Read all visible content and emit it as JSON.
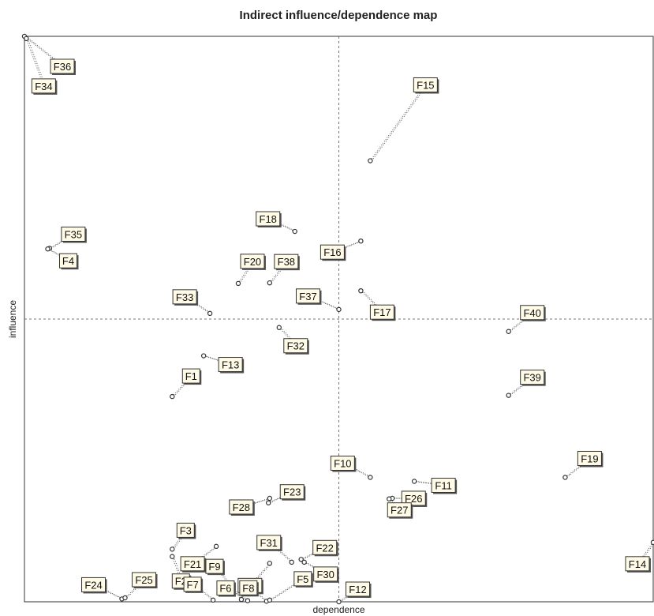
{
  "chart_data": {
    "type": "scatter",
    "title": "Indirect influence/dependence map",
    "xlabel": "dependence",
    "ylabel": "influence",
    "xlim": [
      0,
      100
    ],
    "ylim": [
      0,
      100
    ],
    "grid": false,
    "quadrant_lines": {
      "x": 50,
      "y": 50,
      "style": "dashed"
    },
    "colors": {
      "label_fill": "#fffbe6",
      "label_border": "#333333",
      "leader": "#555555",
      "marker": "#333333"
    },
    "points": [
      {
        "label": "F36",
        "x": 0.0,
        "y": 100.0,
        "ldx": 48,
        "ldy": 38
      },
      {
        "label": "F34",
        "x": 0.3,
        "y": 99.6,
        "ldx": 22,
        "ldy": 60
      },
      {
        "label": "F15",
        "x": 55.0,
        "y": 78.0,
        "ldx": 70,
        "ldy": -96
      },
      {
        "label": "F18",
        "x": 43.0,
        "y": 65.5,
        "ldx": -34,
        "ldy": -16
      },
      {
        "label": "F35",
        "x": 4.0,
        "y": 62.5,
        "ldx": 30,
        "ldy": -18
      },
      {
        "label": "F4",
        "x": 3.7,
        "y": 62.4,
        "ldx": 26,
        "ldy": 15
      },
      {
        "label": "F16",
        "x": 53.5,
        "y": 63.8,
        "ldx": -36,
        "ldy": 14
      },
      {
        "label": "F20",
        "x": 34.0,
        "y": 56.3,
        "ldx": 18,
        "ldy": -28
      },
      {
        "label": "F38",
        "x": 39.0,
        "y": 56.4,
        "ldx": 21,
        "ldy": -27
      },
      {
        "label": "F37",
        "x": 50.0,
        "y": 51.7,
        "ldx": -39,
        "ldy": -17
      },
      {
        "label": "F17",
        "x": 53.5,
        "y": 55.0,
        "ldx": 27,
        "ldy": 27
      },
      {
        "label": "F33",
        "x": 29.5,
        "y": 51.0,
        "ldx": -32,
        "ldy": -21
      },
      {
        "label": "F32",
        "x": 40.5,
        "y": 48.5,
        "ldx": 21,
        "ldy": 23
      },
      {
        "label": "F40",
        "x": 77.0,
        "y": 47.8,
        "ldx": 30,
        "ldy": -24
      },
      {
        "label": "F13",
        "x": 28.5,
        "y": 43.5,
        "ldx": 34,
        "ldy": 11
      },
      {
        "label": "F1",
        "x": 23.5,
        "y": 36.3,
        "ldx": 24,
        "ldy": -26
      },
      {
        "label": "F39",
        "x": 77.0,
        "y": 36.5,
        "ldx": 30,
        "ldy": -23
      },
      {
        "label": "F19",
        "x": 86.0,
        "y": 22.0,
        "ldx": 31,
        "ldy": -24
      },
      {
        "label": "F10",
        "x": 55.0,
        "y": 22.0,
        "ldx": -35,
        "ldy": -18
      },
      {
        "label": "F26",
        "x": 58.5,
        "y": 18.3,
        "ldx": 27,
        "ldy": 0
      },
      {
        "label": "F11",
        "x": 62.0,
        "y": 21.3,
        "ldx": 37,
        "ldy": 5
      },
      {
        "label": "F27",
        "x": 58.0,
        "y": 18.2,
        "ldx": 13,
        "ldy": 14
      },
      {
        "label": "F23",
        "x": 38.8,
        "y": 17.5,
        "ldx": 30,
        "ldy": -14
      },
      {
        "label": "F28",
        "x": 39.0,
        "y": 18.3,
        "ldx": -36,
        "ldy": 11
      },
      {
        "label": "F3",
        "x": 23.5,
        "y": 9.3,
        "ldx": 17,
        "ldy": -24
      },
      {
        "label": "F21",
        "x": 30.5,
        "y": 9.8,
        "ldx": -30,
        "ldy": 22
      },
      {
        "label": "F31",
        "x": 42.5,
        "y": 7.0,
        "ldx": -29,
        "ldy": -25
      },
      {
        "label": "F22",
        "x": 44.0,
        "y": 7.5,
        "ldx": 30,
        "ldy": -15
      },
      {
        "label": "F30",
        "x": 44.5,
        "y": 7.0,
        "ldx": 27,
        "ldy": 15
      },
      {
        "label": "F29",
        "x": 39.0,
        "y": 6.8,
        "ldx": -25,
        "ldy": 28
      },
      {
        "label": "F2",
        "x": 23.5,
        "y": 8.0,
        "ldx": 11,
        "ldy": 31
      },
      {
        "label": "F24",
        "x": 15.5,
        "y": 0.5,
        "ldx": -36,
        "ldy": -18
      },
      {
        "label": "F25",
        "x": 16.0,
        "y": 0.7,
        "ldx": 24,
        "ldy": -23
      },
      {
        "label": "F7",
        "x": 30.0,
        "y": 0.3,
        "ldx": -26,
        "ldy": -20
      },
      {
        "label": "F9",
        "x": 34.5,
        "y": 0.4,
        "ldx": -34,
        "ldy": -42
      },
      {
        "label": "F6",
        "x": 35.5,
        "y": 0.2,
        "ldx": -28,
        "ldy": -16
      },
      {
        "label": "F8",
        "x": 38.5,
        "y": 0.1,
        "ldx": -23,
        "ldy": -17
      },
      {
        "label": "F5",
        "x": 39.0,
        "y": 0.3,
        "ldx": 42,
        "ldy": -27
      },
      {
        "label": "F12",
        "x": 50.0,
        "y": 0.0,
        "ldx": 24,
        "ldy": -16
      },
      {
        "label": "F14",
        "x": 100.0,
        "y": 10.5,
        "ldx": -20,
        "ldy": 27
      }
    ]
  }
}
